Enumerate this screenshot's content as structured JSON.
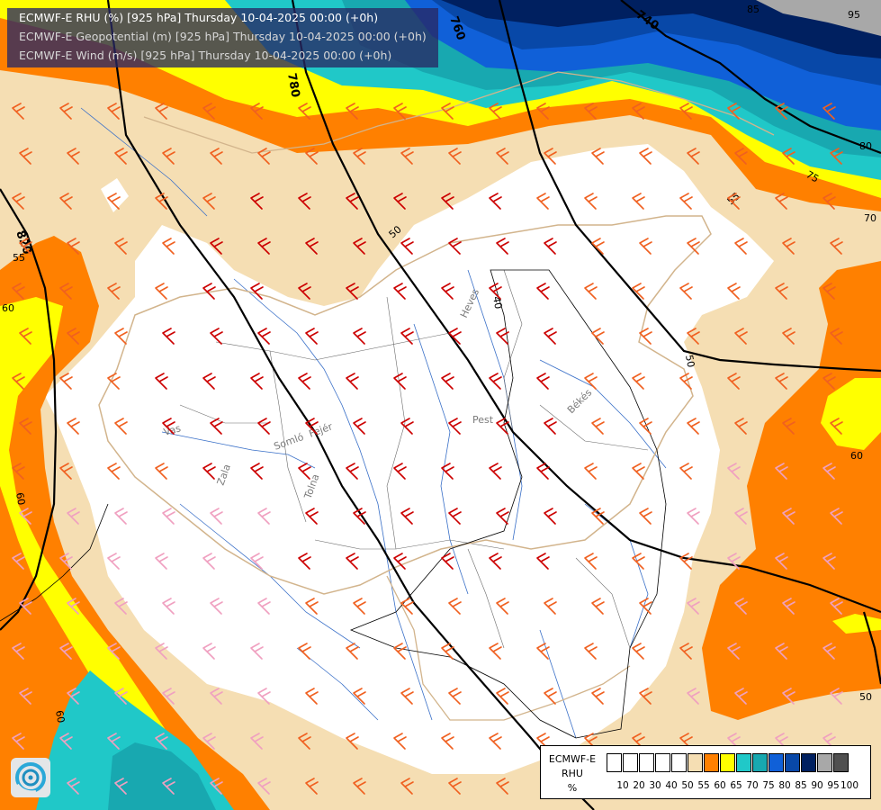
{
  "header": {
    "line1": "ECMWF-E RHU (%) [925 hPa] Thursday 10-04-2025 00:00 (+0h)",
    "line2": "ECMWF-E Geopotential (m) [925 hPa] Thursday 10-04-2025 00:00 (+0h)",
    "line3": "ECMWF-E Wind (m/s) [925 hPa] Thursday 10-04-2025 00:00 (+0h)"
  },
  "legend": {
    "model": "ECMWF-E",
    "variable": "RHU",
    "unit": "%",
    "ticks": [
      "10",
      "20",
      "30",
      "40",
      "50",
      "55",
      "60",
      "65",
      "70",
      "75",
      "80",
      "85",
      "90",
      "95",
      "100"
    ],
    "colors": [
      "#ffffff",
      "#ffffff",
      "#ffffff",
      "#ffffff",
      "#ffffff",
      "#f5deb3",
      "#ff8000",
      "#ffff00",
      "#20c8c8",
      "#18a8b0",
      "#1060d8",
      "#0848a8",
      "#002060",
      "#a8a8a8",
      "#505050"
    ]
  },
  "contour_labels": {
    "geopotential": [
      "760",
      "740",
      "780",
      "820"
    ],
    "humidity": [
      "95",
      "55",
      "50",
      "40",
      "55",
      "60",
      "60",
      "60",
      "60",
      "70",
      "75",
      "80",
      "85",
      "50",
      "50"
    ]
  },
  "river_labels": [
    "Vas",
    "Zala",
    "Somló",
    "Fejér",
    "Tolna",
    "Heves",
    "Pest",
    "Békés"
  ],
  "colors": {
    "rh_55": "#f5deb3",
    "rh_60": "#ff8000",
    "rh_65": "#ffff00",
    "rh_70": "#20c8c8",
    "rh_80": "#1060d8",
    "rh_85": "#0848a8",
    "rh_90": "#002060",
    "rh_95": "#a8a8a8",
    "wind_strong": "#cc0000",
    "wind_moderate": "#f06020",
    "wind_weak": "#f0a0c0"
  },
  "logo": {
    "name": "met-office-logo"
  }
}
